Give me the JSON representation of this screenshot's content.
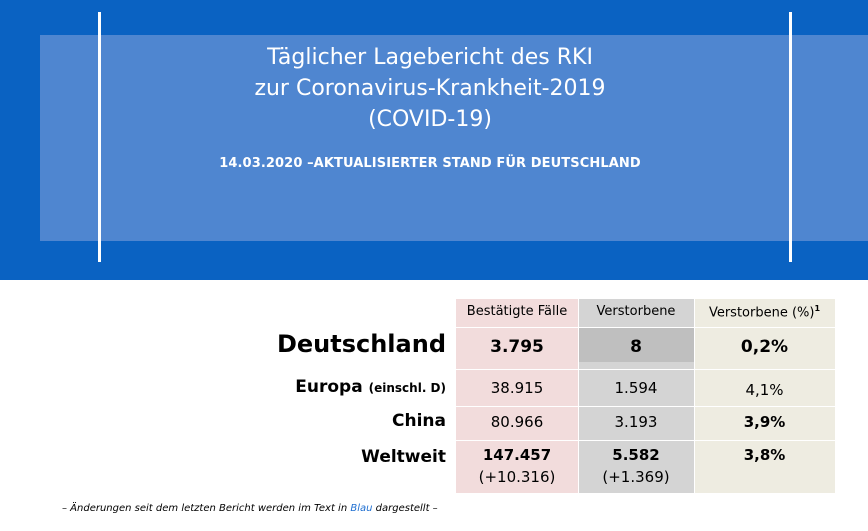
{
  "header": {
    "title_lines": [
      "Täglicher Lagebericht des RKI",
      "zur Coronavirus-Krankheit-2019",
      "(COVID-19)"
    ],
    "subtitle": "14.03.2020 –AKTUALISIERTER STAND FÜR DEUTSCHLAND"
  },
  "table": {
    "columns": [
      "Bestätigte Fälle",
      "Verstorbene",
      "Verstorbene (%)"
    ],
    "footnote_marker": "1",
    "rows": [
      {
        "label": "Deutschland",
        "label_suffix": "",
        "cases": "3.795",
        "cases_change": "",
        "deaths": "8",
        "deaths_change": "",
        "percent": "0,2%"
      },
      {
        "label": "Europa",
        "label_suffix": "(einschl. D)",
        "cases": "38.915",
        "cases_change": "",
        "deaths": "1.594",
        "deaths_change": "",
        "percent": "4,1%"
      },
      {
        "label": "China",
        "label_suffix": "",
        "cases": "80.966",
        "cases_change": "",
        "deaths": "3.193",
        "deaths_change": "",
        "percent": "3,9%"
      },
      {
        "label": "Weltweit",
        "label_suffix": "",
        "cases": "147.457",
        "cases_change": "(+10.316)",
        "deaths": "5.582",
        "deaths_change": "(+1.369)",
        "percent": "3,8%"
      }
    ]
  },
  "footnote": {
    "prefix": "– Änderungen seit dem letzten Bericht werden im Text in ",
    "highlight": "Blau",
    "suffix": " dargestellt –"
  },
  "colors": {
    "banner_blue": "#0a62c2",
    "banner_inner": "#4f86d0",
    "cases_col": "#f2dcdc",
    "deaths_col": "#d4d4d4",
    "percent_col": "#eeece1",
    "footnote_blue": "#1f6fd1"
  }
}
